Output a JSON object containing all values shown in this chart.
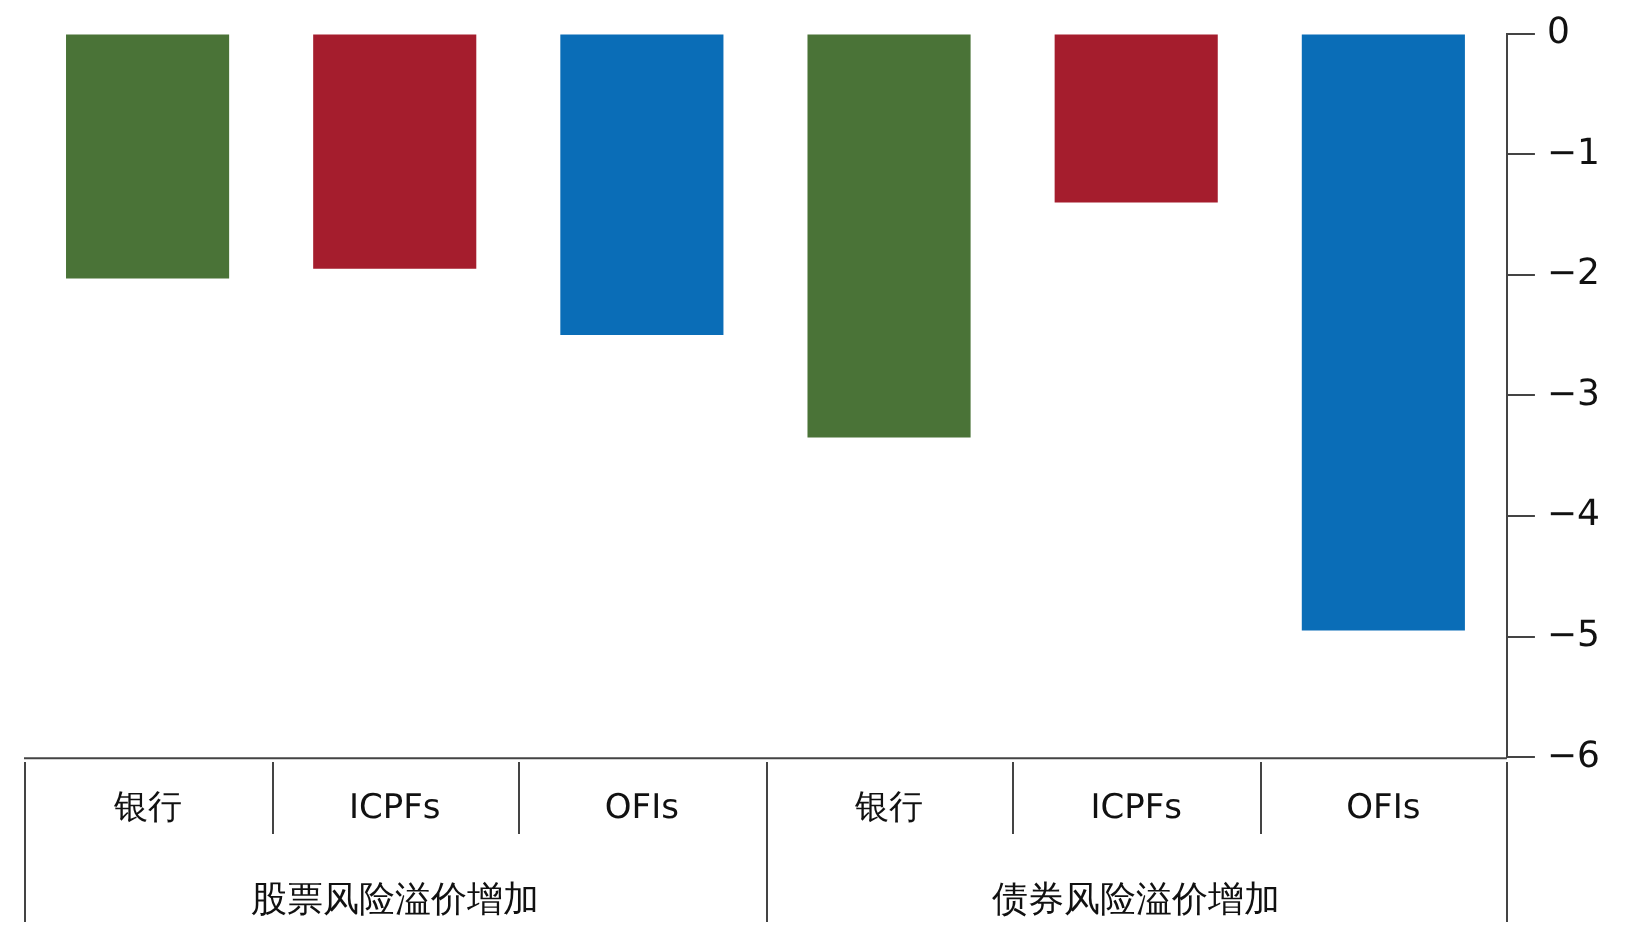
{
  "chart_data": {
    "type": "bar",
    "categories": [
      "银行",
      "ICPFs",
      "OFIs",
      "银行",
      "ICPFs",
      "OFIs"
    ],
    "values": [
      -2.03,
      -1.95,
      -2.5,
      -3.35,
      -1.4,
      -4.95
    ],
    "colors": [
      "#4a7337",
      "#a51d2d",
      "#0a6db7",
      "#4a7337",
      "#a51d2d",
      "#0a6db7"
    ],
    "ylim": [
      -6,
      0
    ],
    "yticks": [
      0,
      {
        "value": -1,
        "label": "−1"
      },
      {
        "value": -2,
        "label": "−2"
      },
      {
        "value": -3,
        "label": "−3"
      },
      {
        "value": -4,
        "label": "−4"
      },
      {
        "value": -5,
        "label": "−5"
      },
      {
        "value": -6,
        "label": "−6"
      }
    ],
    "annotations": [
      "股票风险溢价增加",
      "债券风险溢价增加"
    ],
    "grid": false,
    "legend": false
  }
}
